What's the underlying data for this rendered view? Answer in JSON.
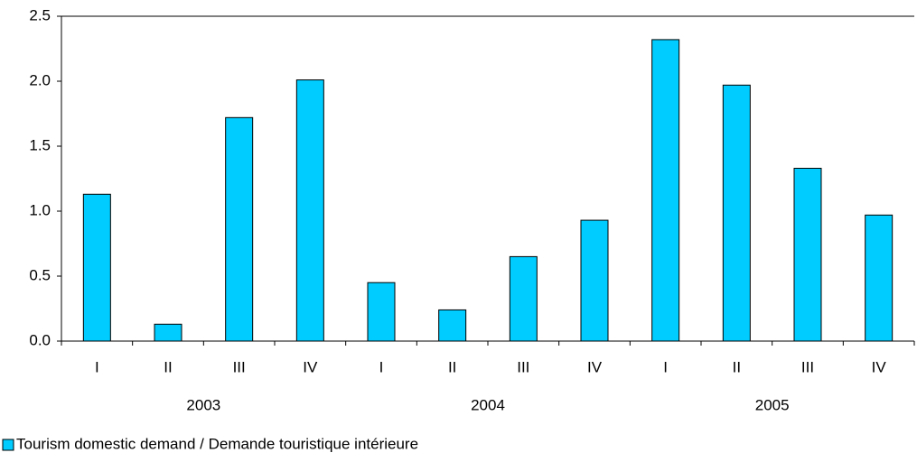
{
  "chart_data": {
    "type": "bar",
    "categories": [
      "I",
      "II",
      "III",
      "IV",
      "I",
      "II",
      "III",
      "IV",
      "I",
      "II",
      "III",
      "IV"
    ],
    "groups": [
      {
        "label": "2003",
        "size": 4
      },
      {
        "label": "2004",
        "size": 4
      },
      {
        "label": "2005",
        "size": 4
      }
    ],
    "series": [
      {
        "name": "Tourism domestic demand / Demande touristique intérieure",
        "color": "#00ccff",
        "values": [
          1.13,
          0.13,
          1.72,
          2.01,
          0.45,
          0.24,
          0.65,
          0.93,
          2.32,
          1.97,
          1.33,
          0.97
        ]
      }
    ],
    "ylim": [
      0,
      2.5
    ],
    "yticks": [
      {
        "value": 0,
        "label": "0.0"
      },
      {
        "value": 0.5,
        "label": "0.5"
      },
      {
        "value": 1,
        "label": "1.0"
      },
      {
        "value": 1.5,
        "label": "1.5"
      },
      {
        "value": 2,
        "label": "2.0"
      },
      {
        "value": 2.5,
        "label": "2.5"
      }
    ],
    "legend": "bottom-left",
    "grid": false
  }
}
